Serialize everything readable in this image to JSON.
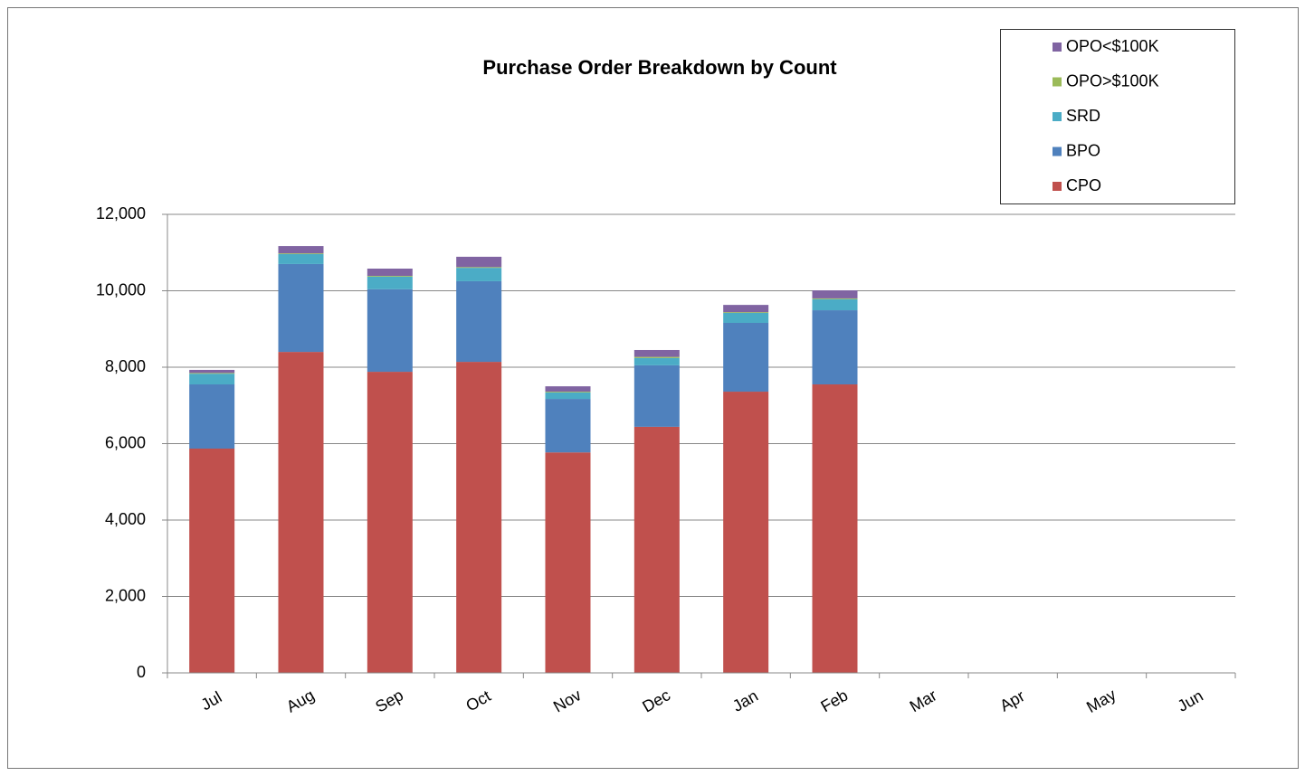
{
  "chart_data": {
    "type": "stacked_bar",
    "title": "Purchase Order Breakdown by Count",
    "categories": [
      "Jul",
      "Aug",
      "Sep",
      "Oct",
      "Nov",
      "Dec",
      "Jan",
      "Feb",
      "Mar",
      "Apr",
      "May",
      "Jun"
    ],
    "series": [
      {
        "name": "CPO",
        "color": "#c0504d",
        "values": [
          5870,
          8400,
          7880,
          8140,
          5770,
          6440,
          7360,
          7550,
          null,
          null,
          null,
          null
        ]
      },
      {
        "name": "BPO",
        "color": "#4f81bd",
        "values": [
          1680,
          2300,
          2160,
          2110,
          1400,
          1610,
          1800,
          1940,
          null,
          null,
          null,
          null
        ]
      },
      {
        "name": "SRD",
        "color": "#4bacc6",
        "values": [
          280,
          260,
          330,
          350,
          170,
          190,
          260,
          290,
          null,
          null,
          null,
          null
        ]
      },
      {
        "name": "OPO>$100K",
        "color": "#9bbb59",
        "values": [
          20,
          20,
          20,
          20,
          20,
          30,
          20,
          20,
          null,
          null,
          null,
          null
        ]
      },
      {
        "name": "OPO<$100K",
        "color": "#8064a2",
        "values": [
          80,
          190,
          190,
          270,
          140,
          180,
          190,
          210,
          null,
          null,
          null,
          null
        ]
      }
    ],
    "ylim": [
      0,
      12000
    ],
    "yticks": [
      0,
      {
        "value": 2000,
        "label": "2,000"
      },
      {
        "value": 4000,
        "label": "4,000"
      },
      {
        "value": 6000,
        "label": "6,000"
      },
      {
        "value": 8000,
        "label": "8,000"
      },
      {
        "value": 10000,
        "label": "10,000"
      },
      {
        "value": 12000,
        "label": "12,000"
      }
    ],
    "grid": true,
    "legend": "top-right"
  }
}
